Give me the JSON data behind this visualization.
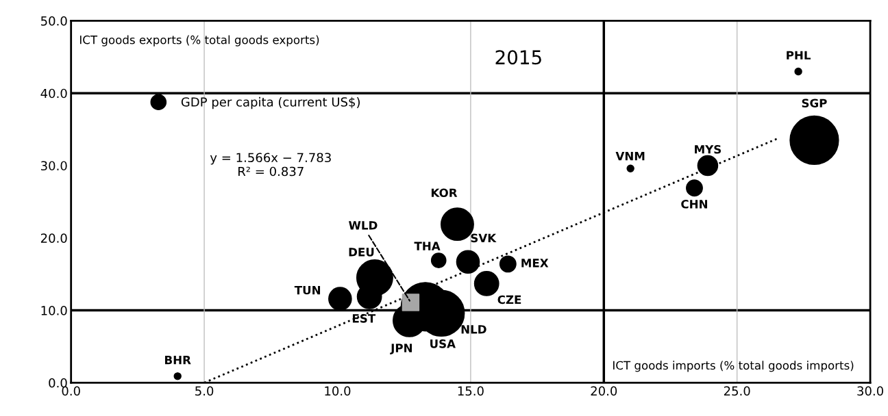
{
  "chart_data": {
    "type": "bubble",
    "title": "2015",
    "xlabel": "ICT goods imports (% total goods imports)",
    "ylabel": "ICT goods exports (% total goods exports)",
    "xlim": [
      0,
      30
    ],
    "ylim": [
      0,
      50
    ],
    "xticks": [
      {
        "value": 0,
        "label": "0.0"
      },
      {
        "value": 5,
        "label": "5.0"
      },
      {
        "value": 10,
        "label": "10.0"
      },
      {
        "value": 15,
        "label": "15.0"
      },
      {
        "value": 20,
        "label": "20.0"
      },
      {
        "value": 25,
        "label": "25.0"
      },
      {
        "value": 30,
        "label": "30.0"
      }
    ],
    "yticks": [
      {
        "value": 0,
        "label": "0.0"
      },
      {
        "value": 10,
        "label": "10.0"
      },
      {
        "value": 20,
        "label": "20.0"
      },
      {
        "value": 30,
        "label": "30.0"
      },
      {
        "value": 40,
        "label": "40.0"
      },
      {
        "value": 50,
        "label": "50.0"
      }
    ],
    "grid": false,
    "legend": "top left",
    "series": [
      {
        "name": "GDP per capita (current US$)",
        "color": "#000000",
        "x": [
          27.3,
          27.9,
          21.0,
          23.9,
          23.4,
          14.5,
          14.9,
          13.8,
          16.4,
          15.6,
          11.4,
          10.1,
          11.2,
          13.3,
          13.9,
          12.7,
          4.0
        ],
        "values": [
          43.0,
          33.5,
          29.6,
          30.0,
          26.9,
          21.9,
          16.7,
          16.9,
          16.4,
          13.7,
          14.5,
          11.6,
          11.9,
          10.5,
          9.6,
          8.6,
          0.9
        ],
        "sizes": [
          0.02,
          1,
          0.02,
          0.17,
          0.11,
          0.45,
          0.22,
          0.09,
          0.11,
          0.25,
          0.55,
          0.22,
          0.25,
          1,
          0.9,
          0.45,
          0.02
        ]
      },
      {
        "type": "scatter",
        "marker": "square",
        "color": "#a6a6a6",
        "x": [
          12.75
        ],
        "values": [
          11.1
        ]
      },
      {
        "type": "line",
        "line_style": "dotted",
        "color": "#000000",
        "x": [
          5,
          26.5
        ],
        "values": [
          0.0,
          33.7
        ]
      }
    ],
    "ref_lines": [
      {
        "axis": "y",
        "value": 10,
        "color": "#000000"
      },
      {
        "axis": "y",
        "value": 40,
        "color": "#000000"
      },
      {
        "axis": "x",
        "value": 20,
        "color": "#000000"
      },
      {
        "axis": "x",
        "value": 5,
        "color": "#bfbfbf"
      },
      {
        "axis": "x",
        "value": 15,
        "color": "#bfbfbf"
      },
      {
        "axis": "x",
        "value": 25,
        "color": "#bfbfbf"
      }
    ],
    "annotations": [
      {
        "text": "PHL",
        "x": 27.3,
        "y": 43.0
      },
      {
        "text": "SGP",
        "x": 27.9,
        "y": 33.5
      },
      {
        "text": "VNM",
        "x": 21.0,
        "y": 29.6
      },
      {
        "text": "MYS",
        "x": 23.9,
        "y": 30.0
      },
      {
        "text": "CHN",
        "x": 23.4,
        "y": 26.9
      },
      {
        "text": "KOR",
        "x": 14.5,
        "y": 21.9
      },
      {
        "text": "SVK",
        "x": 14.9,
        "y": 16.7
      },
      {
        "text": "THA",
        "x": 13.8,
        "y": 16.9
      },
      {
        "text": "MEX",
        "x": 16.4,
        "y": 16.4
      },
      {
        "text": "CZE",
        "x": 15.6,
        "y": 13.7
      },
      {
        "text": "DEU",
        "x": 11.4,
        "y": 14.5
      },
      {
        "text": "TUN",
        "x": 10.1,
        "y": 11.6
      },
      {
        "text": "EST",
        "x": 11.2,
        "y": 11.9
      },
      {
        "text": "USA",
        "x": 13.3,
        "y": 10.5
      },
      {
        "text": "NLD",
        "x": 13.9,
        "y": 9.6
      },
      {
        "text": "JPN",
        "x": 12.7,
        "y": 8.6
      },
      {
        "text": "BHR",
        "x": 4.0,
        "y": 0.9
      },
      {
        "text": "WLD",
        "x": 12.75,
        "y": 11.1
      },
      "y = 1.566x − 7.783\nR² = 0.837"
    ]
  }
}
